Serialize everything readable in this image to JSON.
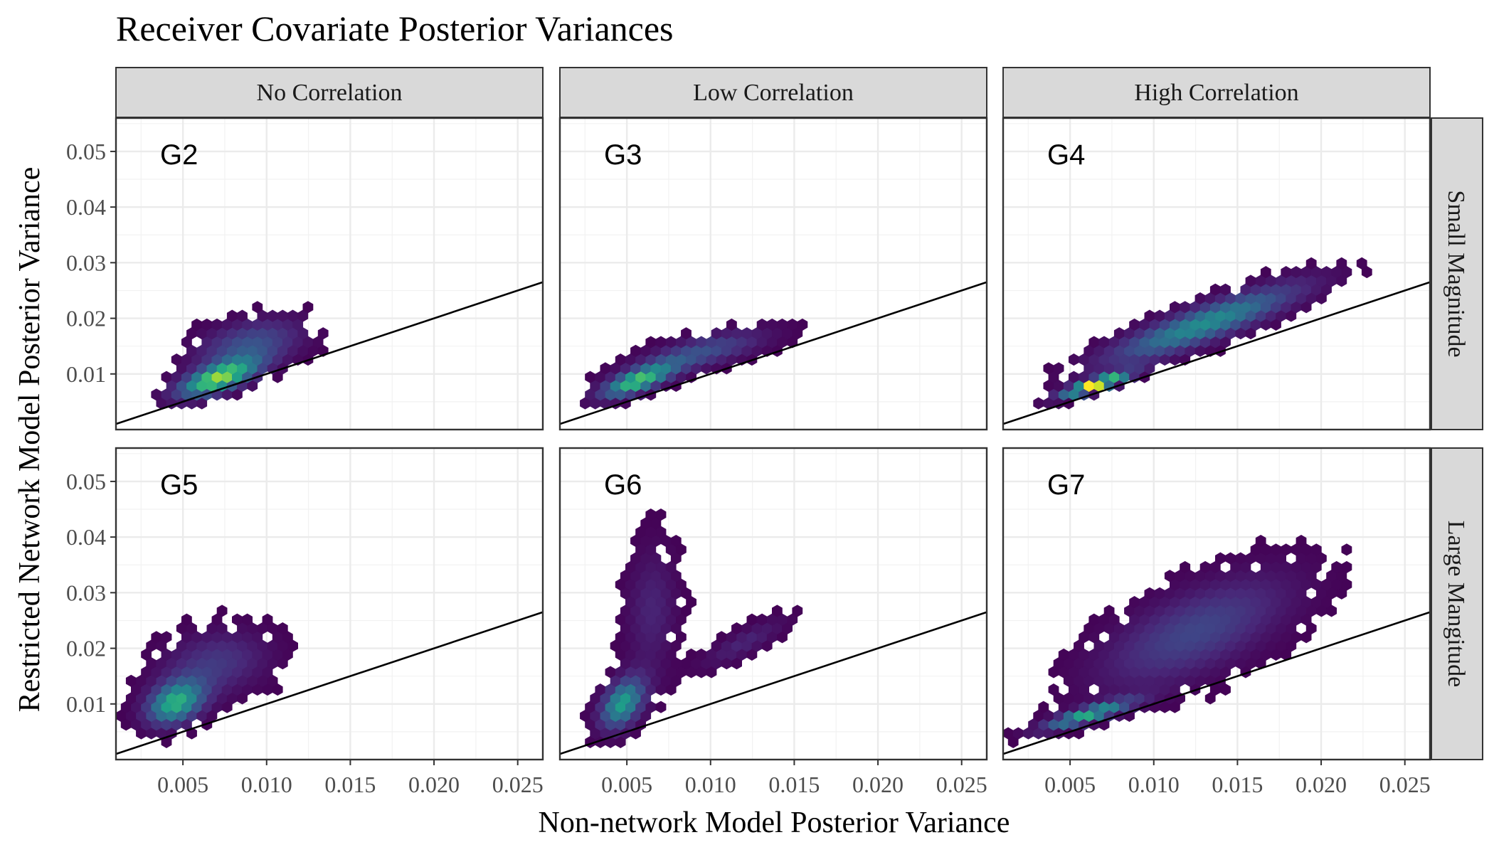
{
  "chart_data": {
    "type": "hexbin",
    "title": "Receiver Covariate Posterior Variances",
    "xlabel": "Non-network Model Posterior Variance",
    "ylabel": "Restricted Network Model Posterior Variance",
    "col_facets": [
      "No Correlation",
      "Low Correlation",
      "High Correlation"
    ],
    "row_facets": [
      "Small Magnitude",
      "Large Mangitude"
    ],
    "xlim": [
      0.001,
      0.0265
    ],
    "ylim": [
      0.0,
      0.056
    ],
    "x_ticks": [
      0.005,
      0.01,
      0.015,
      0.02,
      0.025
    ],
    "x_tick_labels": [
      "0.005",
      "0.010",
      "0.015",
      "0.020",
      "0.025"
    ],
    "y_ticks": [
      0.01,
      0.02,
      0.03,
      0.04,
      0.05
    ],
    "y_tick_labels": [
      "0.01",
      "0.02",
      "0.03",
      "0.04",
      "0.05"
    ],
    "reference_line": {
      "intercept": 0.0,
      "slope": 1.0
    },
    "grid": true,
    "color_scale": "viridis",
    "colors": {
      "low": "#440154",
      "mid": "#21908C",
      "high": "#FDE725",
      "line": "#000000",
      "strip": "#D9D9D9",
      "grid": "#EBEBEB"
    },
    "panels": [
      {
        "label": "G2",
        "row": 0,
        "col": 0,
        "clusters": [
          {
            "cx": 0.007,
            "cy": 0.009,
            "sx": 0.0018,
            "sy": 0.0025,
            "rho": 0.65,
            "w": 1.0
          },
          {
            "cx": 0.009,
            "cy": 0.0155,
            "sx": 0.0025,
            "sy": 0.0035,
            "rho": 0.4,
            "w": 0.5
          }
        ],
        "peak": 0.85
      },
      {
        "label": "G3",
        "row": 0,
        "col": 1,
        "clusters": [
          {
            "cx": 0.0055,
            "cy": 0.0085,
            "sx": 0.0016,
            "sy": 0.0022,
            "rho": 0.7,
            "w": 1.0
          },
          {
            "cx": 0.0095,
            "cy": 0.014,
            "sx": 0.003,
            "sy": 0.003,
            "rho": 0.7,
            "w": 0.55
          }
        ],
        "peak": 0.7
      },
      {
        "label": "G4",
        "row": 0,
        "col": 2,
        "clusters": [
          {
            "cx": 0.0065,
            "cy": 0.008,
            "sx": 0.0015,
            "sy": 0.0016,
            "rho": 0.85,
            "w": 1.0
          },
          {
            "cx": 0.013,
            "cy": 0.019,
            "sx": 0.0045,
            "sy": 0.0055,
            "rho": 0.88,
            "w": 0.65
          }
        ],
        "peak": 1.0
      },
      {
        "label": "G5",
        "row": 1,
        "col": 0,
        "clusters": [
          {
            "cx": 0.0045,
            "cy": 0.01,
            "sx": 0.0013,
            "sy": 0.003,
            "rho": 0.3,
            "w": 1.0
          },
          {
            "cx": 0.007,
            "cy": 0.0175,
            "sx": 0.0025,
            "sy": 0.0045,
            "rho": 0.2,
            "w": 0.45
          }
        ],
        "peak": 0.62
      },
      {
        "label": "G6",
        "row": 1,
        "col": 1,
        "clusters": [
          {
            "cx": 0.0047,
            "cy": 0.01,
            "sx": 0.001,
            "sy": 0.0035,
            "rho": 0.4,
            "w": 1.0
          },
          {
            "cx": 0.0065,
            "cy": 0.027,
            "sx": 0.0012,
            "sy": 0.009,
            "rho": 0.1,
            "w": 0.35
          },
          {
            "cx": 0.012,
            "cy": 0.021,
            "sx": 0.002,
            "sy": 0.0035,
            "rho": 0.85,
            "w": 0.35
          }
        ],
        "peak": 0.55
      },
      {
        "label": "G7",
        "row": 1,
        "col": 2,
        "clusters": [
          {
            "cx": 0.006,
            "cy": 0.008,
            "sx": 0.002,
            "sy": 0.002,
            "rho": 0.85,
            "w": 1.0
          },
          {
            "cx": 0.0125,
            "cy": 0.023,
            "sx": 0.0045,
            "sy": 0.008,
            "rho": 0.65,
            "w": 0.55
          }
        ],
        "peak": 0.6
      }
    ]
  }
}
